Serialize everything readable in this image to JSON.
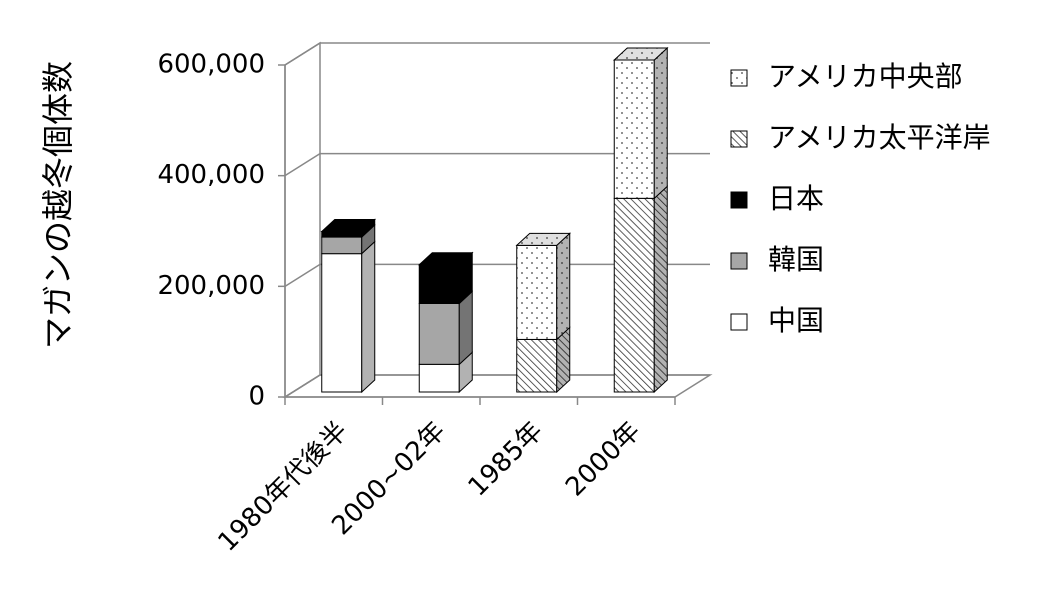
{
  "chart_data": {
    "type": "bar3d-stacked",
    "y_label": "マガンの越冬個体数",
    "categories": [
      "1980年代後半",
      "2000~02年",
      "1985年",
      "2000年"
    ],
    "series": [
      {
        "name": "中国",
        "color": "#ffffff",
        "pattern": "solid",
        "values": [
          250000,
          50000,
          null,
          null
        ]
      },
      {
        "name": "韓国",
        "color": "#a6a6a6",
        "pattern": "solid",
        "values": [
          30000,
          110000,
          null,
          null
        ]
      },
      {
        "name": "日本",
        "color": "#000000",
        "pattern": "solid",
        "values": [
          10000,
          70000,
          null,
          null
        ]
      },
      {
        "name": "アメリカ太平洋岸",
        "color": "#ffffff",
        "pattern": "hatch",
        "values": [
          null,
          null,
          95000,
          350000
        ]
      },
      {
        "name": "アメリカ中央部",
        "color": "#ffffff",
        "pattern": "dots",
        "values": [
          null,
          null,
          170000,
          250000
        ]
      }
    ],
    "ylim": [
      0,
      600000
    ],
    "yticks": [
      {
        "value": 0,
        "label": "0"
      },
      {
        "value": 200000,
        "label": "200,000"
      },
      {
        "value": 400000,
        "label": "400,000"
      },
      {
        "value": 600000,
        "label": "600,000"
      }
    ],
    "grid": true,
    "legend": "right"
  }
}
